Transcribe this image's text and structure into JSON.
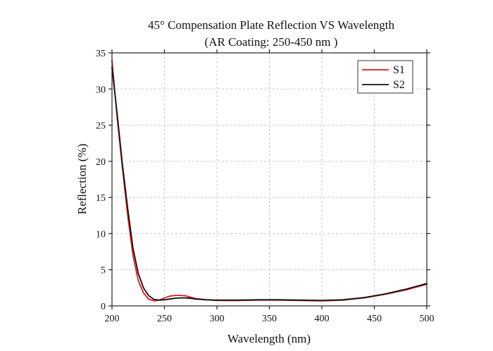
{
  "chart_data": {
    "type": "line",
    "title": "45° Compensation Plate Reflection VS Wavelength",
    "subtitle": "(AR Coating: 250-450 nm )",
    "xlabel": "Wavelength (nm)",
    "ylabel": "Reflection (%)",
    "xlim": [
      200,
      500
    ],
    "ylim": [
      0,
      35
    ],
    "xticks": [
      200,
      250,
      300,
      350,
      400,
      450,
      500
    ],
    "yticks": [
      0,
      5,
      10,
      15,
      20,
      25,
      30,
      35
    ],
    "grid": true,
    "legend_position": "top-right",
    "series": [
      {
        "name": "S1",
        "color": "#e8141c",
        "x": [
          200,
          205,
          210,
          215,
          220,
          225,
          230,
          235,
          240,
          245,
          250,
          255,
          260,
          265,
          270,
          275,
          280,
          290,
          300,
          320,
          340,
          360,
          380,
          400,
          420,
          440,
          460,
          480,
          500
        ],
        "y": [
          34.0,
          26.0,
          19.0,
          12.5,
          7.0,
          3.5,
          1.8,
          0.9,
          0.7,
          0.8,
          1.1,
          1.35,
          1.45,
          1.45,
          1.4,
          1.2,
          1.0,
          0.85,
          0.75,
          0.75,
          0.8,
          0.8,
          0.75,
          0.7,
          0.8,
          1.1,
          1.6,
          2.2,
          3.0
        ]
      },
      {
        "name": "S2",
        "color": "#111111",
        "x": [
          200,
          205,
          210,
          215,
          220,
          225,
          230,
          235,
          240,
          245,
          250,
          255,
          260,
          265,
          270,
          275,
          280,
          290,
          300,
          320,
          340,
          360,
          380,
          400,
          420,
          440,
          460,
          480,
          500
        ],
        "y": [
          33.0,
          26.5,
          19.5,
          13.5,
          8.0,
          4.5,
          2.5,
          1.4,
          0.9,
          0.8,
          0.85,
          0.95,
          1.05,
          1.1,
          1.1,
          1.05,
          0.95,
          0.85,
          0.8,
          0.8,
          0.85,
          0.85,
          0.8,
          0.75,
          0.85,
          1.15,
          1.65,
          2.3,
          3.1
        ]
      }
    ]
  }
}
